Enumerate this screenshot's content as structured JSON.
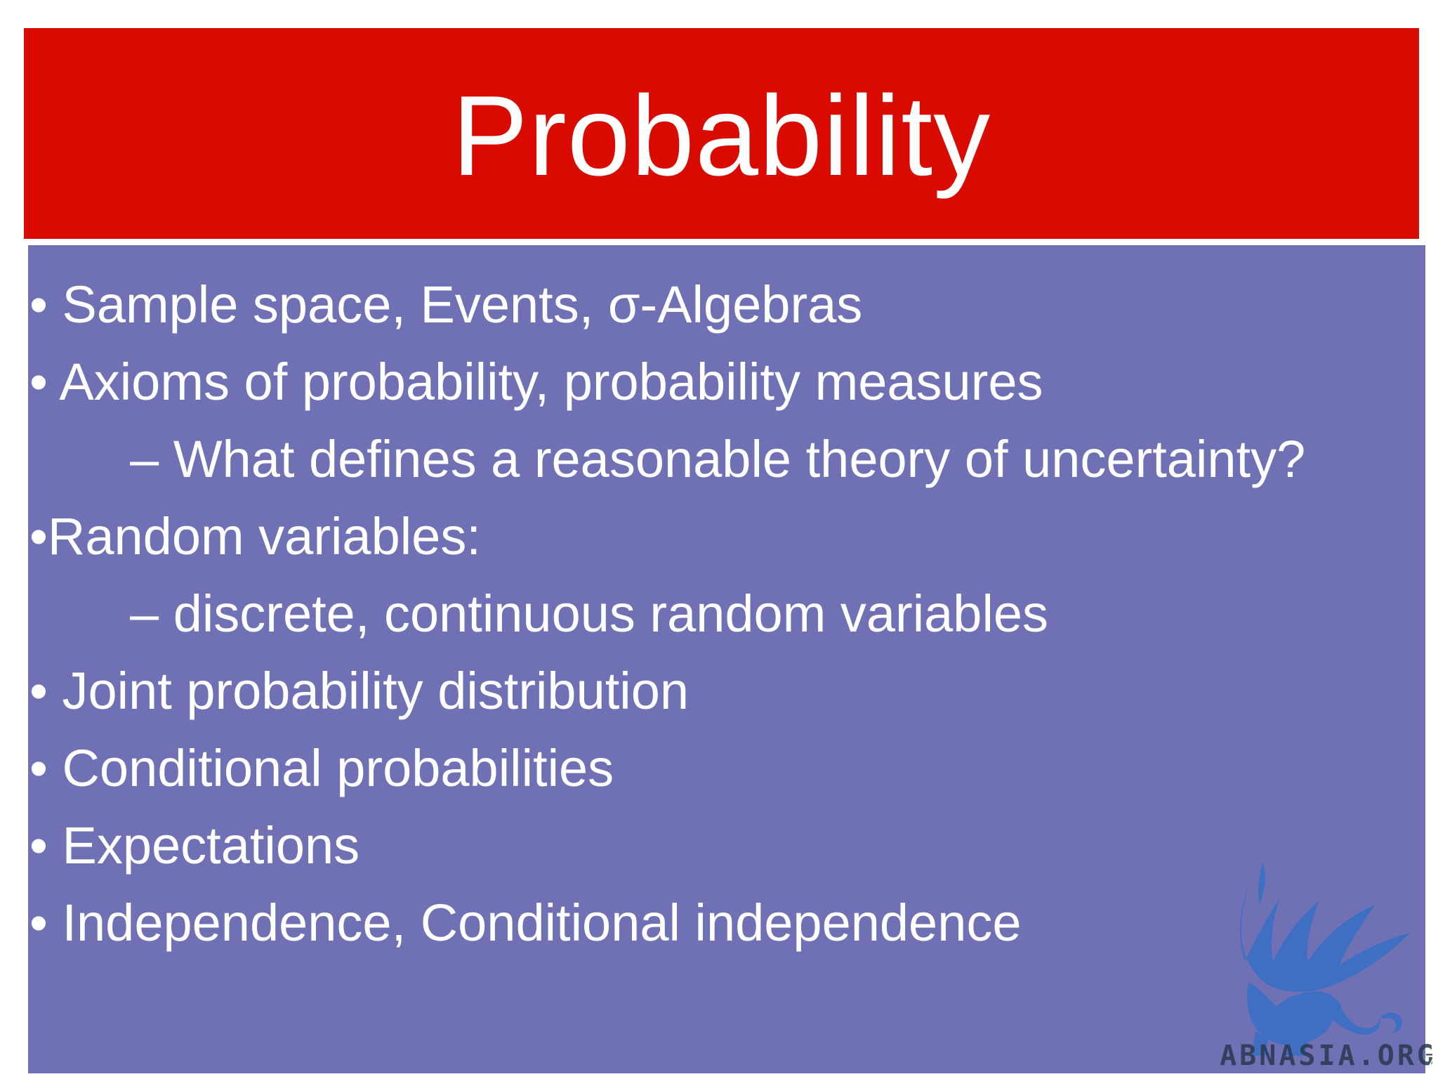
{
  "slide": {
    "title": "Probability",
    "bullets": [
      {
        "level": 1,
        "text": "• Sample space, Events, σ-Algebras"
      },
      {
        "level": 1,
        "text": "• Axioms of probability, probability measures"
      },
      {
        "level": 2,
        "text": "– What defines a reasonable theory of uncertainty?"
      },
      {
        "level": 1,
        "text": "•Random variables:"
      },
      {
        "level": 2,
        "text": "– discrete, continuous random variables"
      },
      {
        "level": 1,
        "text": "• Joint probability distribution"
      },
      {
        "level": 1,
        "text": "• Conditional probabilities"
      },
      {
        "level": 1,
        "text": "• Expectations"
      },
      {
        "level": 1,
        "text": "• Independence, Conditional independence"
      }
    ],
    "page_number": "7"
  },
  "watermark": {
    "text": "ABNASIA.ORG",
    "icon": "griffin-logo-icon"
  },
  "colors": {
    "title_bar": "#d90a00",
    "content_box": "#7070b5",
    "text": "#ffffff",
    "logo": "#3a6fc4"
  }
}
